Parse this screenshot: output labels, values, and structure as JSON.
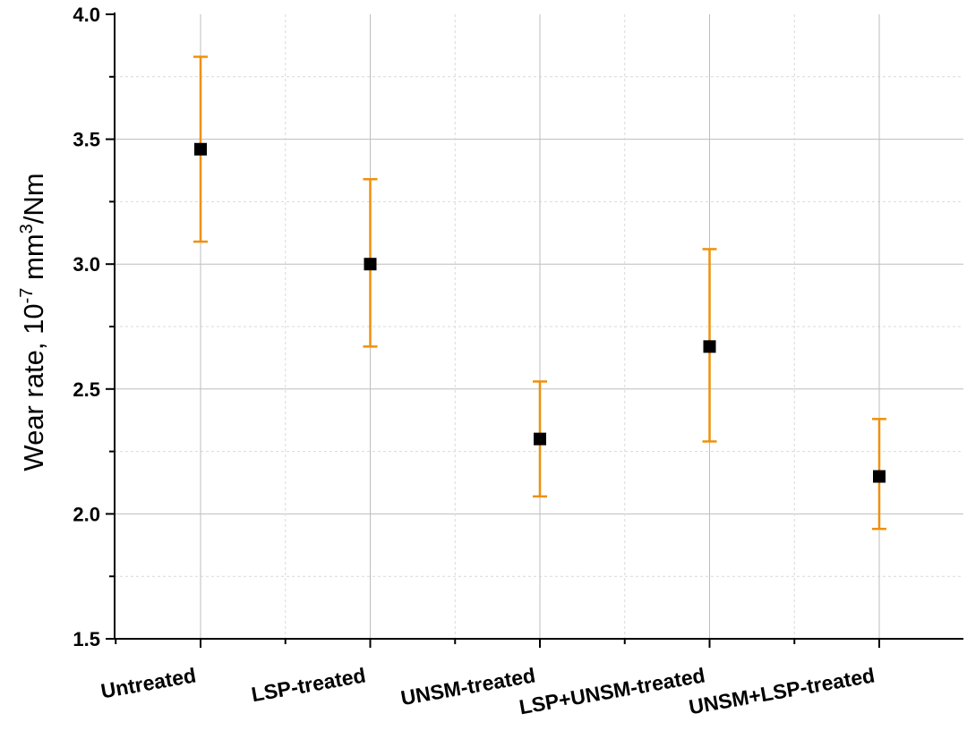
{
  "chart_data": {
    "type": "scatter",
    "title": "",
    "xlabel": "",
    "ylabel": {
      "main": "Wear rate, 10",
      "exp1": "-7",
      "unit": " mm",
      "exp2": "3",
      "tail": "/Nm"
    },
    "categories": [
      "Untreated",
      "LSP-treated",
      "UNSM-treated",
      "LSP+UNSM-treated",
      "UNSM+LSP-treated"
    ],
    "values": [
      3.46,
      3.0,
      2.3,
      2.67,
      2.15
    ],
    "error_low": [
      3.09,
      2.67,
      2.07,
      2.29,
      1.94
    ],
    "error_high": [
      3.83,
      3.34,
      2.53,
      3.06,
      2.38
    ],
    "ylim": [
      1.5,
      4.0
    ],
    "yticks": [
      "1.5",
      "2.0",
      "2.5",
      "3.0",
      "3.5",
      "4.0"
    ],
    "grid": true,
    "colors": {
      "marker": "#000000",
      "errorbar": "#f0900a",
      "grid_major": "#bdbdbd",
      "grid_minor": "#d9d9d9"
    }
  }
}
